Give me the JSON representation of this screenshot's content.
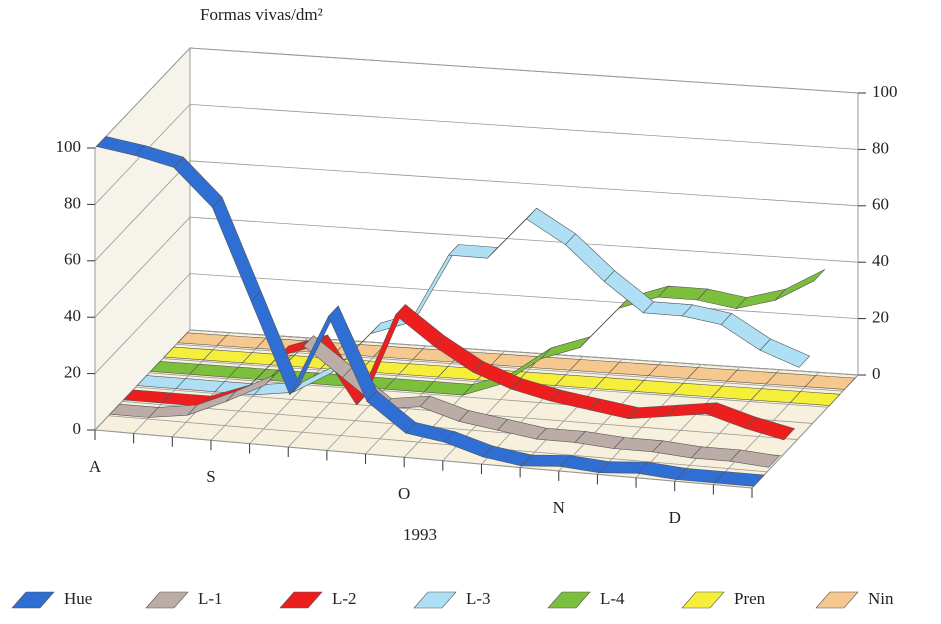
{
  "chart_data": {
    "type": "ribbon3d",
    "y_label": "Formas vivas/dm²",
    "x_label": "1993",
    "categories": [
      "A",
      null,
      null,
      "S",
      null,
      null,
      null,
      null,
      "O",
      null,
      null,
      null,
      "N",
      null,
      null,
      "D",
      null,
      null
    ],
    "ylim": [
      0,
      100
    ],
    "yticks": [
      0,
      20,
      40,
      60,
      80,
      100
    ],
    "y2lim": [
      0,
      100
    ],
    "y2ticks": [
      0,
      20,
      40,
      60,
      80,
      100
    ],
    "grid": true,
    "legend": "bottom",
    "series": [
      {
        "name": "Hue",
        "color": "#2f6fd3",
        "values": [
          100,
          98,
          95,
          82,
          50,
          18,
          47,
          18,
          8,
          6,
          2,
          0,
          1,
          0,
          1,
          0,
          0,
          0
        ]
      },
      {
        "name": "L-1",
        "color": "#bcaca8",
        "values": [
          0,
          0,
          2,
          8,
          15,
          30,
          20,
          10,
          12,
          8,
          6,
          4,
          4,
          3,
          3,
          2,
          2,
          1
        ]
      },
      {
        "name": "L-2",
        "color": "#ec1e1e",
        "values": [
          0,
          0,
          0,
          5,
          20,
          25,
          5,
          38,
          28,
          20,
          15,
          12,
          10,
          8,
          10,
          12,
          8,
          5
        ]
      },
      {
        "name": "L-3",
        "color": "#aedff5",
        "values": [
          0,
          0,
          0,
          0,
          2,
          10,
          25,
          30,
          55,
          55,
          70,
          62,
          50,
          40,
          40,
          38,
          30,
          25
        ]
      },
      {
        "name": "L-4",
        "color": "#7cbf3c",
        "values": [
          0,
          0,
          0,
          0,
          0,
          0,
          0,
          0,
          0,
          5,
          15,
          20,
          35,
          40,
          40,
          38,
          42,
          50
        ]
      },
      {
        "name": "Pren",
        "color": "#f5ef3c",
        "values": [
          0,
          0,
          0,
          0,
          0,
          0,
          0,
          0,
          0,
          0,
          0,
          0,
          0,
          0,
          0,
          0,
          0,
          0
        ]
      },
      {
        "name": "Nin",
        "color": "#f4c88f",
        "values": [
          0,
          0,
          0,
          0,
          0,
          0,
          0,
          0,
          0,
          0,
          0,
          0,
          0,
          0,
          0,
          0,
          0,
          0
        ]
      }
    ]
  }
}
